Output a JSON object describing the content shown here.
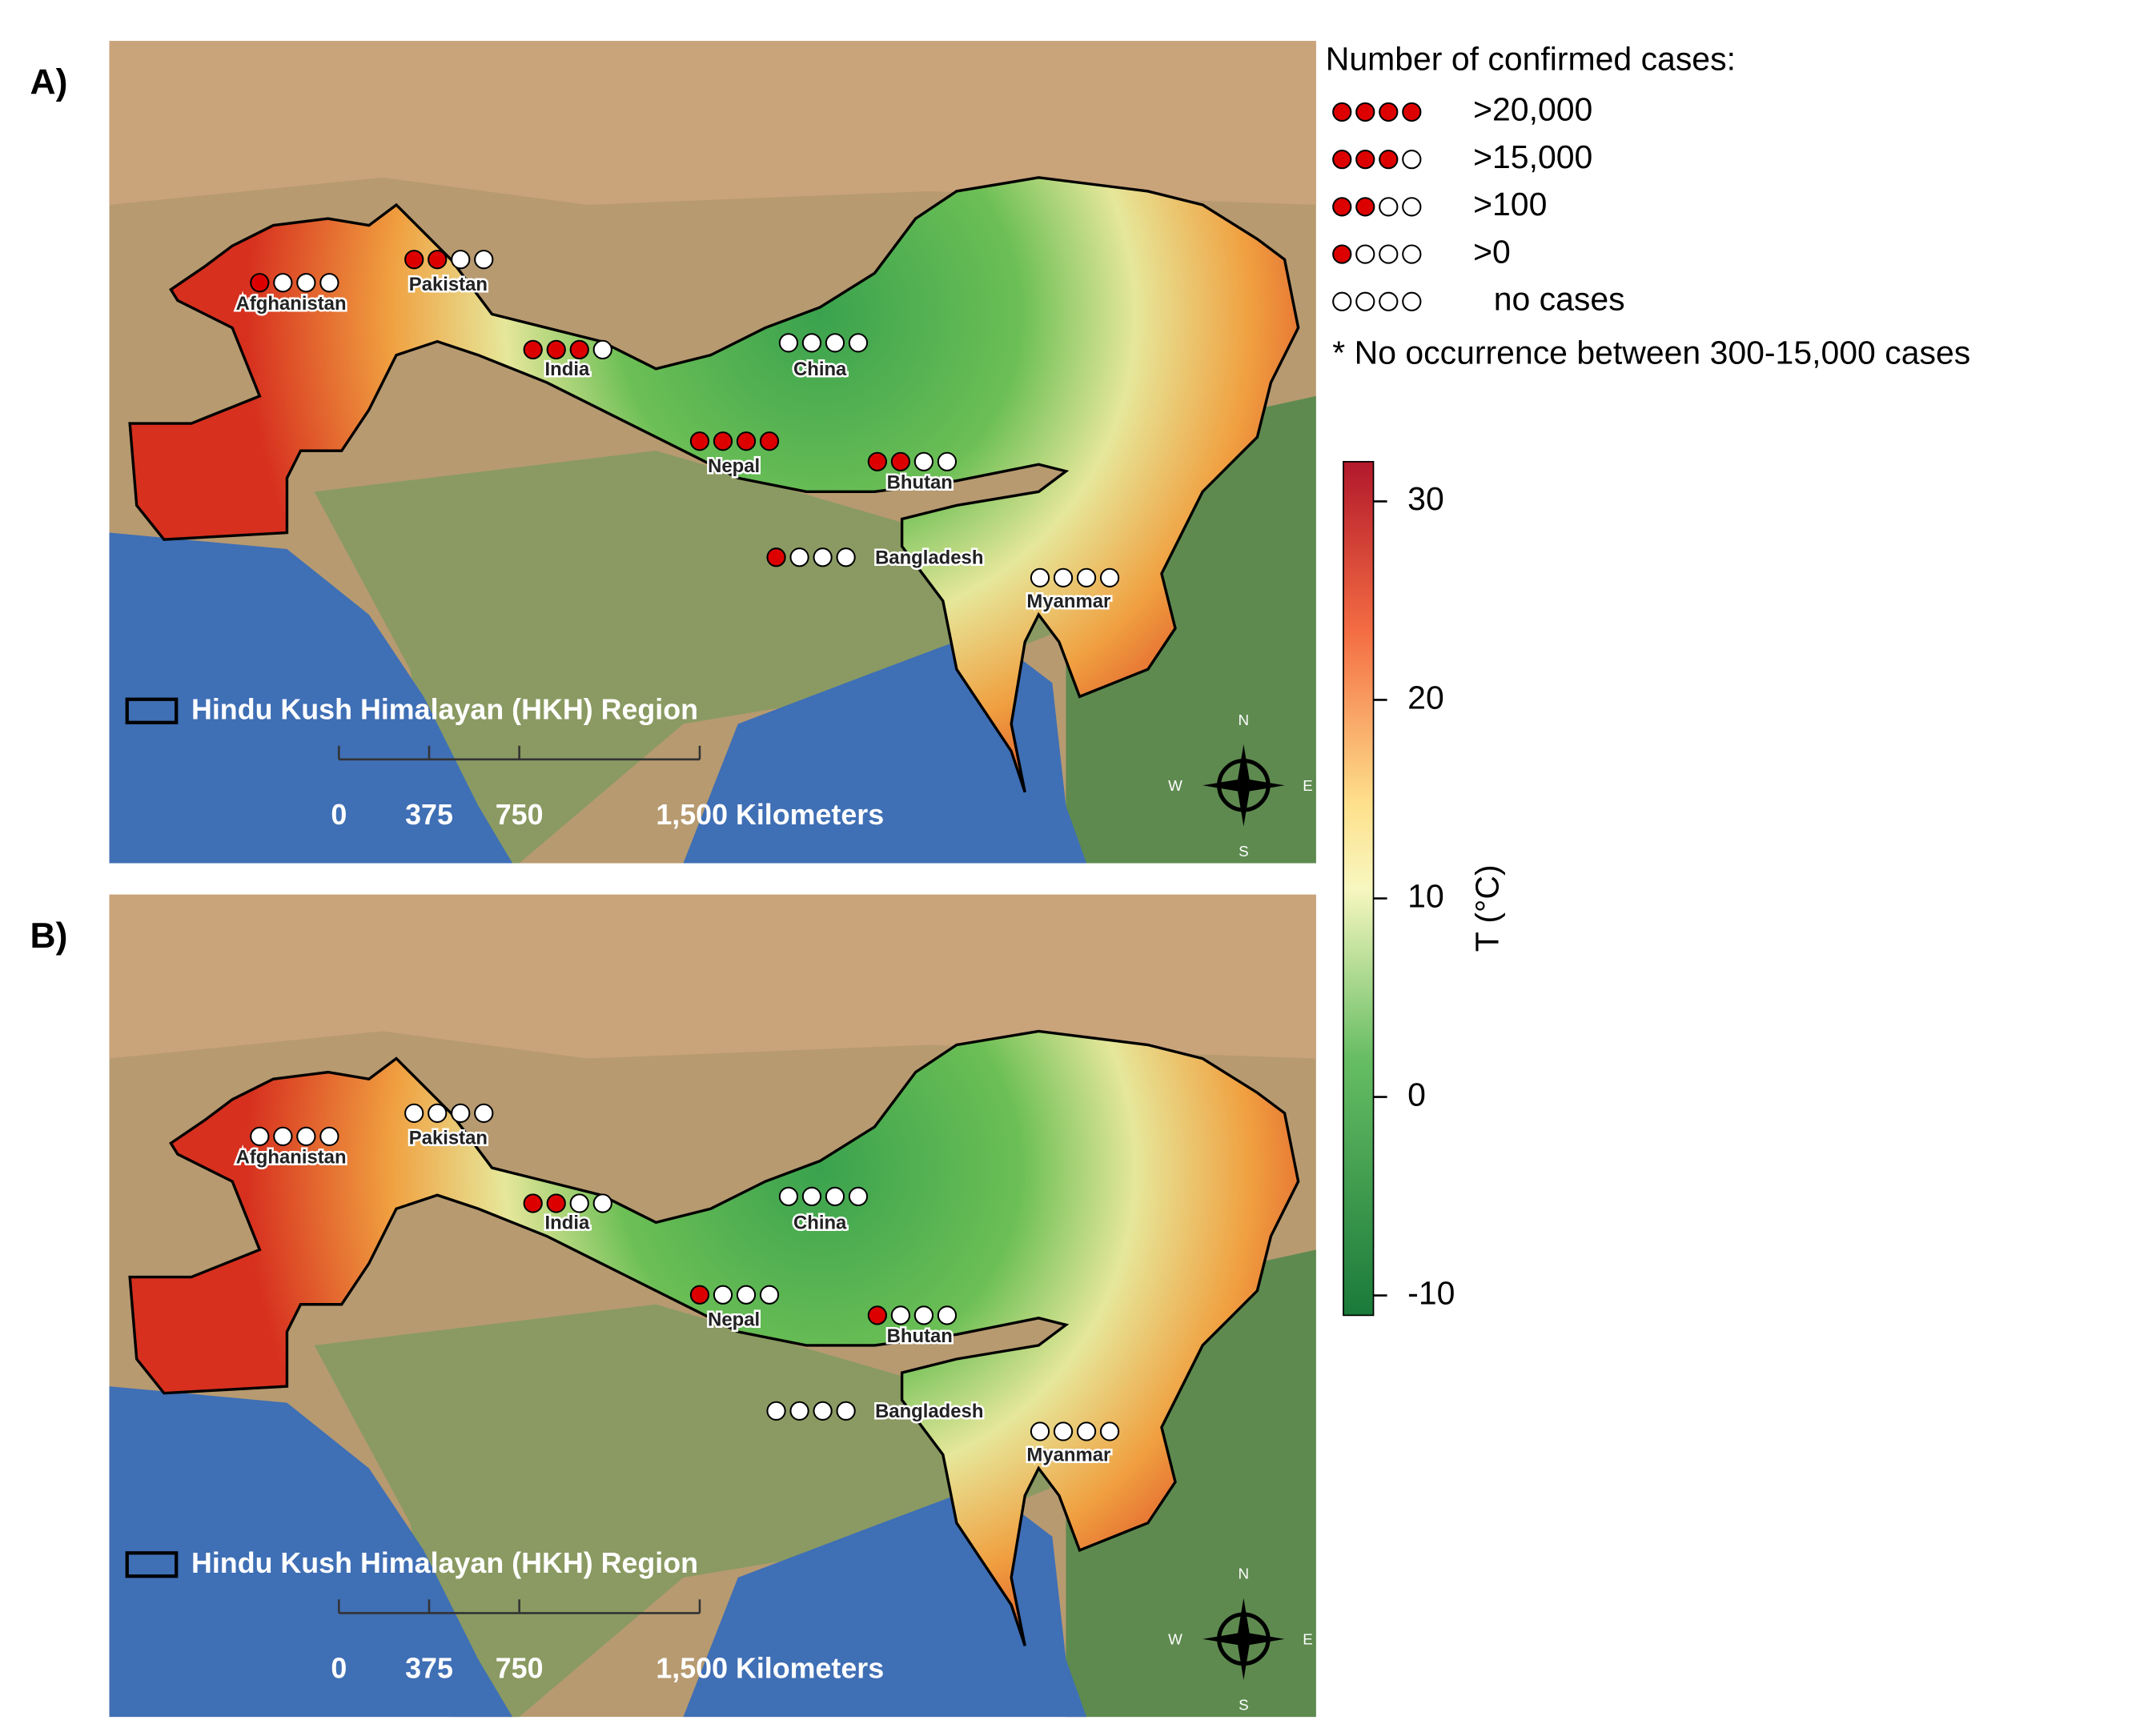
{
  "panels": [
    {
      "label": "A)",
      "countries": [
        {
          "name": "Afghanistan",
          "level": 1
        },
        {
          "name": "Pakistan",
          "level": 2
        },
        {
          "name": "India",
          "level": 3
        },
        {
          "name": "China",
          "level": 0
        },
        {
          "name": "Nepal",
          "level": 4
        },
        {
          "name": "Bhutan",
          "level": 2
        },
        {
          "name": "Bangladesh",
          "level": 1
        },
        {
          "name": "Myanmar",
          "level": 0
        }
      ]
    },
    {
      "label": "B)",
      "countries": [
        {
          "name": "Afghanistan",
          "level": 0
        },
        {
          "name": "Pakistan",
          "level": 0
        },
        {
          "name": "India",
          "level": 2
        },
        {
          "name": "China",
          "level": 0
        },
        {
          "name": "Nepal",
          "level": 1
        },
        {
          "name": "Bhutan",
          "level": 1
        },
        {
          "name": "Bangladesh",
          "level": 0
        },
        {
          "name": "Myanmar",
          "level": 0
        }
      ]
    }
  ],
  "region_label": "Hindu Kush Himalayan (HKH) Region",
  "scale_bar": {
    "ticks": [
      0,
      375,
      750,
      {
        "value": 1500,
        "label": "1,500 Kilometers"
      }
    ],
    "max": 1500
  },
  "compass": {
    "n": "N",
    "s": "S",
    "e": "E",
    "w": "W"
  },
  "legend": {
    "title": "Number of confirmed cases:",
    "items": [
      {
        "level": 4,
        "label": ">20,000"
      },
      {
        "level": 3,
        "label": ">15,000"
      },
      {
        "level": 2,
        "label": ">100"
      },
      {
        "level": 1,
        "label": ">0"
      },
      {
        "level": 0,
        "label": "no cases"
      }
    ],
    "note": "* No occurrence between 300-15,000 cases"
  },
  "colorbar": {
    "title": "T (°C)",
    "lim": [
      -11,
      32
    ],
    "ticks": [
      30,
      20,
      10,
      0,
      -10
    ]
  }
}
